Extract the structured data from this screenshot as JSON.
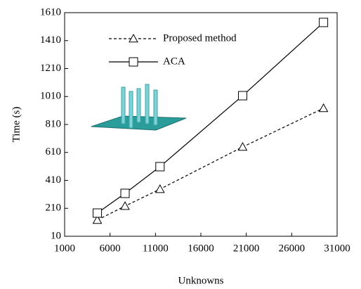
{
  "chart_data": {
    "type": "line",
    "x_label": "Unknowns",
    "y_label": "Time (s)",
    "xlim": [
      1000,
      31000
    ],
    "xticks": [
      1000,
      6000,
      11000,
      16000,
      21000,
      26000,
      31000
    ],
    "ylim": [
      10,
      1610
    ],
    "yticks": [
      10,
      210,
      410,
      610,
      810,
      1010,
      1210,
      1410,
      1610
    ],
    "legend": "upper left",
    "series": [
      {
        "name": "Proposed method",
        "color": "#000000",
        "dash": "dashed",
        "marker": "triangle",
        "x": [
          4600,
          7650,
          11500,
          20600,
          29500
        ],
        "values": [
          126,
          226,
          347,
          649,
          926
        ]
      },
      {
        "name": "ACA",
        "color": "#000000",
        "dash": "solid",
        "marker": "square",
        "x": [
          4600,
          7650,
          11500,
          20600,
          29500
        ],
        "values": [
          176,
          317,
          508,
          1016,
          1540
        ]
      }
    ]
  }
}
